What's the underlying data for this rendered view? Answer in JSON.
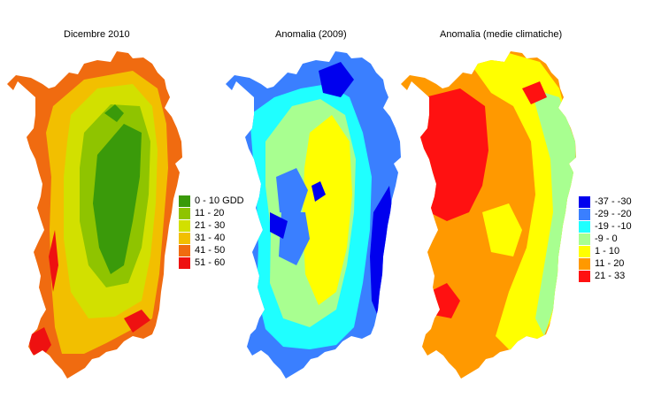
{
  "maps": [
    {
      "title": "Dicembre 2010",
      "legend": [
        {
          "label": "0 - 10 GDD",
          "color": "#3a9a0a"
        },
        {
          "label": "11 - 20",
          "color": "#8fc400"
        },
        {
          "label": "21 - 30",
          "color": "#d2e000"
        },
        {
          "label": "31 - 40",
          "color": "#f2bf00"
        },
        {
          "label": "41 - 50",
          "color": "#f06b10"
        },
        {
          "label": "51 - 60",
          "color": "#ee1111"
        }
      ]
    },
    {
      "title": "Anomalia (2009)",
      "legend": []
    },
    {
      "title": "Anomalia (medie climatiche)",
      "legend": [
        {
          "label": "-37 - -30",
          "color": "#0000ee"
        },
        {
          "label": "-29 - -20",
          "color": "#3a7fff"
        },
        {
          "label": "-19 - -10",
          "color": "#1fffff"
        },
        {
          "label": "-9 - 0",
          "color": "#a8ff90"
        },
        {
          "label": "1 - 10",
          "color": "#ffff00"
        },
        {
          "label": "11 - 20",
          "color": "#ff9900"
        },
        {
          "label": "21 - 33",
          "color": "#ff1111"
        }
      ]
    }
  ]
}
